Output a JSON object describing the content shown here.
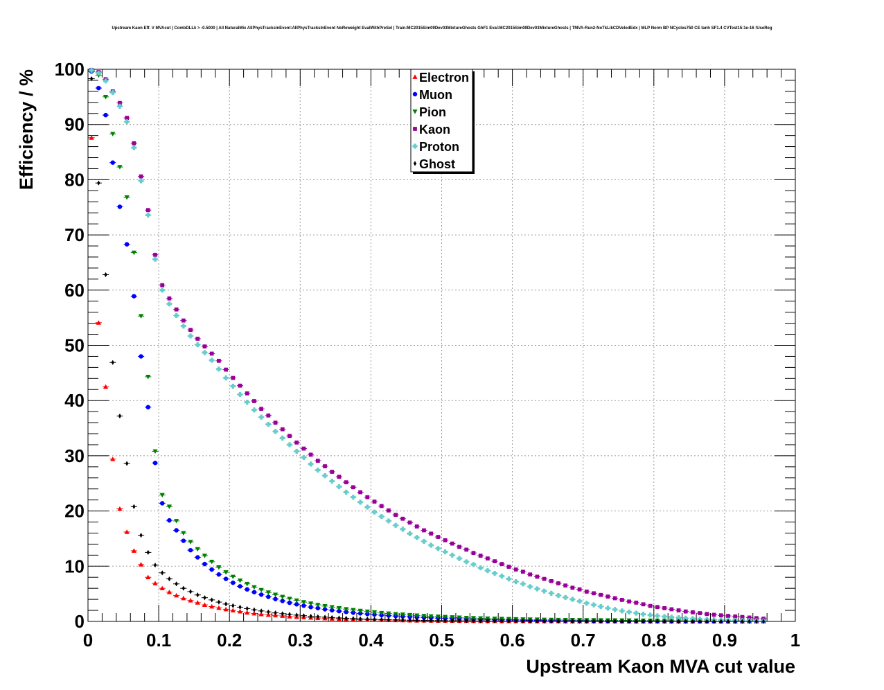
{
  "chart_data": {
    "type": "scatter",
    "title": "Upstream Kaon Eff. V MVAcut | CombDLLk > -0.5000 | All NaturalMix AllPhysTracksInEvent:AllPhysTracksInEvent NoReweight EvalWithPreSel | Train:MC2015Sim09Dev03MixtureGhosts GhF1 Eval:MC2015Sim09Dev03MixtureGhosts | TMVA-Run2-NoTkLikCDVelodEdx | MLP Norm BP NCycles750 CE tanh SF1.4 CVTest15:1e-16 !UseReg",
    "xlabel": "Upstream Kaon MVA cut value",
    "ylabel": "Efficiency / %",
    "xlim": [
      0,
      1
    ],
    "ylim": [
      0,
      100
    ],
    "x_ticks": [
      "0",
      "0.1",
      "0.2",
      "0.3",
      "0.4",
      "0.5",
      "0.6",
      "0.7",
      "0.8",
      "0.9",
      "1"
    ],
    "y_ticks": [
      "0",
      "10",
      "20",
      "30",
      "40",
      "50",
      "60",
      "70",
      "80",
      "90",
      "100"
    ],
    "grid": true,
    "legend_position": "top-center",
    "x": [
      0.005,
      0.015,
      0.025,
      0.035,
      0.045,
      0.055,
      0.065,
      0.075,
      0.085,
      0.095,
      0.105,
      0.115,
      0.125,
      0.135,
      0.145,
      0.155,
      0.165,
      0.175,
      0.185,
      0.195,
      0.205,
      0.215,
      0.225,
      0.235,
      0.245,
      0.255,
      0.265,
      0.275,
      0.285,
      0.295,
      0.305,
      0.315,
      0.325,
      0.335,
      0.345,
      0.355,
      0.365,
      0.375,
      0.385,
      0.395,
      0.405,
      0.415,
      0.425,
      0.435,
      0.445,
      0.455,
      0.465,
      0.475,
      0.485,
      0.495,
      0.505,
      0.515,
      0.525,
      0.535,
      0.545,
      0.555,
      0.565,
      0.575,
      0.585,
      0.595,
      0.605,
      0.615,
      0.625,
      0.635,
      0.645,
      0.655,
      0.665,
      0.675,
      0.685,
      0.695,
      0.705,
      0.715,
      0.725,
      0.735,
      0.745,
      0.755,
      0.765,
      0.775,
      0.785,
      0.795,
      0.805,
      0.815,
      0.825,
      0.835,
      0.845,
      0.855,
      0.865,
      0.875,
      0.885,
      0.895,
      0.905,
      0.915,
      0.925,
      0.935,
      0.945,
      0.955
    ],
    "series": [
      {
        "name": "Electron",
        "color": "#ff0000",
        "marker": "triangle-up",
        "values": [
          87.6,
          54.1,
          42.5,
          29.4,
          20.4,
          16.2,
          12.8,
          10.3,
          8.0,
          6.9,
          6.0,
          5.3,
          4.7,
          4.2,
          3.8,
          3.4,
          3.0,
          2.7,
          2.45,
          2.2,
          2.0,
          1.8,
          1.6,
          1.45,
          1.3,
          1.2,
          1.1,
          1.0,
          0.9,
          0.82,
          0.75,
          0.68,
          0.62,
          0.56,
          0.5,
          0.46,
          0.42,
          0.38,
          0.35,
          0.32,
          0.29,
          0.26,
          0.24,
          0.22,
          0.2,
          0.18,
          0.16,
          0.15,
          0.14,
          0.13,
          0.12,
          0.11,
          0.1,
          0.09,
          0.08,
          0.07,
          0.065,
          0.06,
          0.055,
          0.05,
          0.045,
          0.04,
          0.037,
          0.034,
          0.031,
          0.028,
          0.025,
          0.022,
          0.02,
          0.018,
          0.016,
          0.014,
          0.012,
          0.01,
          0.009,
          0.008,
          0.007,
          0.006,
          0.005,
          0.004,
          0.003,
          0.003,
          0.002,
          0.002,
          0.001,
          0.001,
          0.001,
          0.001,
          0.001,
          0.001,
          0.001,
          0.001,
          0.001,
          0.001,
          0.001,
          0.001
        ]
      },
      {
        "name": "Muon",
        "color": "#0000ff",
        "marker": "circle",
        "values": [
          99.6,
          96.6,
          91.7,
          83.1,
          75.1,
          68.3,
          58.9,
          48.0,
          38.8,
          28.7,
          21.4,
          18.3,
          16.5,
          14.6,
          12.9,
          11.6,
          10.4,
          9.4,
          8.5,
          7.7,
          7.0,
          6.35,
          5.8,
          5.3,
          4.85,
          4.45,
          4.05,
          3.7,
          3.38,
          3.1,
          2.85,
          2.6,
          2.4,
          2.2,
          2.02,
          1.86,
          1.72,
          1.58,
          1.46,
          1.34,
          1.24,
          1.14,
          1.05,
          0.97,
          0.9,
          0.83,
          0.76,
          0.7,
          0.65,
          0.6,
          0.55,
          0.5,
          0.46,
          0.42,
          0.39,
          0.36,
          0.33,
          0.3,
          0.28,
          0.26,
          0.24,
          0.22,
          0.2,
          0.18,
          0.16,
          0.15,
          0.14,
          0.13,
          0.12,
          0.11,
          0.1,
          0.09,
          0.085,
          0.08,
          0.075,
          0.07,
          0.065,
          0.06,
          0.055,
          0.05,
          0.045,
          0.04,
          0.035,
          0.03,
          0.027,
          0.024,
          0.02,
          0.017,
          0.015,
          0.013,
          0.011,
          0.009,
          0.007,
          0.005,
          0.004,
          0.003
        ]
      },
      {
        "name": "Pion",
        "color": "#008000",
        "marker": "triangle-down",
        "values": [
          99.7,
          98.9,
          95.0,
          88.3,
          82.3,
          76.8,
          66.8,
          55.3,
          44.3,
          30.8,
          22.9,
          20.8,
          18.2,
          16.0,
          14.4,
          13.1,
          11.9,
          10.8,
          9.8,
          8.9,
          8.1,
          7.4,
          6.8,
          6.2,
          5.7,
          5.25,
          4.85,
          4.45,
          4.1,
          3.8,
          3.5,
          3.25,
          3.0,
          2.78,
          2.58,
          2.4,
          2.23,
          2.07,
          1.93,
          1.79,
          1.66,
          1.54,
          1.44,
          1.34,
          1.25,
          1.16,
          1.08,
          1.0,
          0.93,
          0.87,
          0.81,
          0.75,
          0.7,
          0.65,
          0.61,
          0.57,
          0.53,
          0.5,
          0.47,
          0.44,
          0.41,
          0.38,
          0.36,
          0.34,
          0.32,
          0.3,
          0.28,
          0.27,
          0.26,
          0.25,
          0.24,
          0.23,
          0.22,
          0.21,
          0.2,
          0.19,
          0.18,
          0.17,
          0.16,
          0.15,
          0.14,
          0.13,
          0.12,
          0.11,
          0.1,
          0.095,
          0.09,
          0.085,
          0.08,
          0.075,
          0.07,
          0.065,
          0.06,
          0.055,
          0.05,
          0.045
        ]
      },
      {
        "name": "Kaon",
        "color": "#990099",
        "marker": "square",
        "values": [
          99.9,
          99.5,
          98.2,
          96.0,
          93.9,
          91.2,
          86.6,
          80.6,
          74.5,
          66.4,
          60.9,
          58.5,
          56.5,
          54.5,
          52.8,
          51.2,
          49.8,
          48.5,
          47.2,
          45.6,
          44.1,
          42.7,
          41.3,
          39.9,
          38.5,
          37.3,
          36.0,
          34.8,
          33.6,
          32.4,
          31.3,
          30.2,
          29.1,
          28.1,
          27.1,
          26.2,
          25.2,
          24.3,
          23.4,
          22.5,
          21.7,
          20.9,
          20.1,
          19.3,
          18.6,
          17.9,
          17.2,
          16.5,
          15.9,
          15.3,
          14.7,
          14.1,
          13.5,
          13.0,
          12.4,
          11.9,
          11.4,
          10.9,
          10.4,
          9.9,
          9.4,
          9.0,
          8.5,
          8.1,
          7.7,
          7.3,
          6.9,
          6.5,
          6.1,
          5.8,
          5.4,
          5.1,
          4.8,
          4.5,
          4.2,
          3.9,
          3.6,
          3.4,
          3.1,
          2.8,
          2.6,
          2.4,
          2.2,
          2.0,
          1.8,
          1.65,
          1.5,
          1.35,
          1.2,
          1.1,
          1.0,
          0.9,
          0.8,
          0.7,
          0.6,
          0.5
        ]
      },
      {
        "name": "Proton",
        "color": "#66cccc",
        "marker": "cross",
        "values": [
          99.8,
          99.3,
          97.9,
          95.8,
          93.3,
          90.5,
          85.8,
          79.8,
          73.6,
          65.6,
          60.0,
          57.5,
          55.4,
          53.5,
          51.7,
          50.1,
          48.7,
          47.3,
          45.7,
          44.1,
          42.6,
          41.1,
          39.7,
          38.3,
          37.0,
          35.7,
          34.4,
          33.2,
          32.0,
          30.8,
          29.7,
          28.5,
          27.4,
          26.4,
          25.4,
          24.4,
          23.4,
          22.5,
          21.6,
          20.7,
          19.8,
          19.0,
          18.2,
          17.4,
          16.7,
          15.9,
          15.2,
          14.5,
          13.8,
          13.2,
          12.6,
          12.0,
          11.4,
          10.8,
          10.3,
          9.7,
          9.2,
          8.7,
          8.2,
          7.7,
          7.2,
          6.8,
          6.3,
          5.9,
          5.5,
          5.1,
          4.7,
          4.35,
          4.0,
          3.65,
          3.3,
          3.0,
          2.7,
          2.4,
          2.15,
          1.9,
          1.7,
          1.5,
          1.3,
          1.15,
          1.0,
          0.88,
          0.77,
          0.67,
          0.58,
          0.5,
          0.43,
          0.37,
          0.32,
          0.27,
          0.23,
          0.19,
          0.16,
          0.13,
          0.1,
          0.08
        ]
      },
      {
        "name": "Ghost",
        "color": "#000000",
        "marker": "diamond",
        "values": [
          98.3,
          79.4,
          62.8,
          46.9,
          37.2,
          28.6,
          20.8,
          15.6,
          12.5,
          10.2,
          8.8,
          7.7,
          6.8,
          6.0,
          5.4,
          4.8,
          4.3,
          3.9,
          3.5,
          3.15,
          2.85,
          2.58,
          2.33,
          2.1,
          1.9,
          1.72,
          1.55,
          1.4,
          1.27,
          1.15,
          1.04,
          0.94,
          0.85,
          0.77,
          0.7,
          0.63,
          0.57,
          0.52,
          0.47,
          0.43,
          0.39,
          0.35,
          0.32,
          0.29,
          0.26,
          0.23,
          0.21,
          0.19,
          0.17,
          0.15,
          0.14,
          0.13,
          0.12,
          0.11,
          0.1,
          0.09,
          0.08,
          0.07,
          0.065,
          0.06,
          0.055,
          0.05,
          0.045,
          0.04,
          0.035,
          0.03,
          0.027,
          0.024,
          0.021,
          0.018,
          0.016,
          0.014,
          0.012,
          0.01,
          0.009,
          0.008,
          0.007,
          0.006,
          0.005,
          0.004,
          0.003,
          0.003,
          0.002,
          0.002,
          0.001,
          0.001,
          0.001,
          0.001,
          0.001,
          0.001,
          0.001,
          0.001,
          0.001,
          0.001,
          0.001,
          0.001
        ]
      }
    ]
  }
}
